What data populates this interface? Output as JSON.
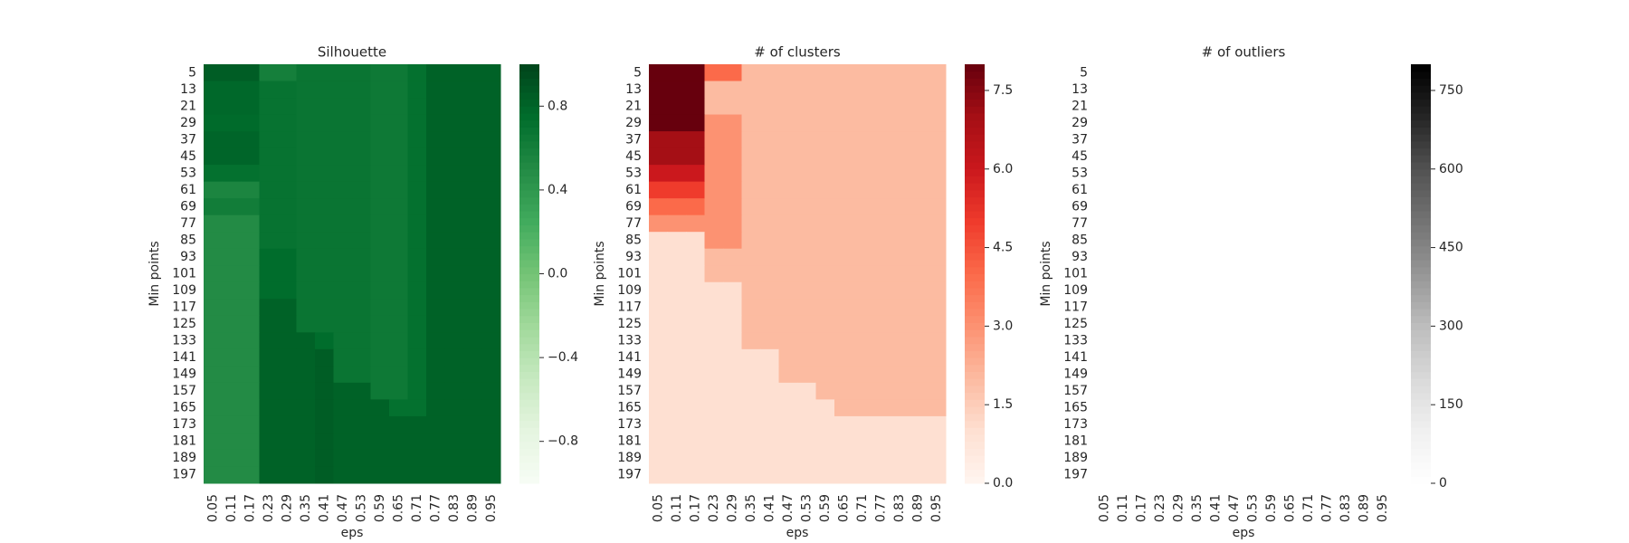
{
  "chart_data": [
    {
      "type": "heatmap",
      "title": "Silhouette",
      "xlabel": "eps",
      "ylabel": "Min points",
      "colormap": "Greens",
      "x": [
        0.05,
        0.11,
        0.17,
        0.23,
        0.29,
        0.35,
        0.41,
        0.47,
        0.53,
        0.59,
        0.65,
        0.71,
        0.77,
        0.83,
        0.89,
        0.95
      ],
      "y": [
        5,
        13,
        21,
        29,
        37,
        45,
        53,
        61,
        69,
        77,
        85,
        93,
        101,
        109,
        117,
        125,
        133,
        141,
        149,
        157,
        165,
        173,
        181,
        189,
        197
      ],
      "values": [
        [
          0.85,
          0.85,
          0.85,
          0.6,
          0.6,
          0.68,
          0.68,
          0.68,
          0.68,
          0.65,
          0.65,
          0.72,
          0.82,
          0.82,
          0.82,
          0.82
        ],
        [
          0.78,
          0.78,
          0.78,
          0.7,
          0.7,
          0.68,
          0.68,
          0.68,
          0.68,
          0.65,
          0.65,
          0.72,
          0.82,
          0.82,
          0.82,
          0.82
        ],
        [
          0.78,
          0.78,
          0.78,
          0.7,
          0.7,
          0.68,
          0.68,
          0.68,
          0.68,
          0.65,
          0.65,
          0.72,
          0.82,
          0.82,
          0.82,
          0.82
        ],
        [
          0.76,
          0.76,
          0.76,
          0.7,
          0.7,
          0.68,
          0.68,
          0.68,
          0.68,
          0.65,
          0.65,
          0.72,
          0.82,
          0.82,
          0.82,
          0.82
        ],
        [
          0.8,
          0.8,
          0.8,
          0.7,
          0.7,
          0.68,
          0.68,
          0.68,
          0.68,
          0.65,
          0.65,
          0.72,
          0.82,
          0.82,
          0.82,
          0.82
        ],
        [
          0.8,
          0.8,
          0.8,
          0.7,
          0.7,
          0.68,
          0.68,
          0.68,
          0.68,
          0.65,
          0.65,
          0.72,
          0.82,
          0.82,
          0.82,
          0.82
        ],
        [
          0.72,
          0.72,
          0.72,
          0.7,
          0.7,
          0.68,
          0.68,
          0.68,
          0.68,
          0.65,
          0.65,
          0.72,
          0.82,
          0.82,
          0.82,
          0.82
        ],
        [
          0.55,
          0.55,
          0.55,
          0.7,
          0.7,
          0.68,
          0.68,
          0.68,
          0.68,
          0.65,
          0.65,
          0.72,
          0.82,
          0.82,
          0.82,
          0.82
        ],
        [
          0.62,
          0.62,
          0.62,
          0.7,
          0.7,
          0.68,
          0.68,
          0.68,
          0.68,
          0.65,
          0.65,
          0.72,
          0.82,
          0.82,
          0.82,
          0.82
        ],
        [
          0.5,
          0.5,
          0.5,
          0.7,
          0.7,
          0.68,
          0.68,
          0.68,
          0.68,
          0.65,
          0.65,
          0.72,
          0.82,
          0.82,
          0.82,
          0.82
        ],
        [
          0.5,
          0.5,
          0.5,
          0.7,
          0.7,
          0.68,
          0.68,
          0.68,
          0.68,
          0.65,
          0.65,
          0.72,
          0.82,
          0.82,
          0.82,
          0.82
        ],
        [
          0.5,
          0.5,
          0.5,
          0.75,
          0.75,
          0.68,
          0.68,
          0.68,
          0.68,
          0.65,
          0.65,
          0.72,
          0.82,
          0.82,
          0.82,
          0.82
        ],
        [
          0.5,
          0.5,
          0.5,
          0.75,
          0.75,
          0.68,
          0.68,
          0.68,
          0.68,
          0.65,
          0.65,
          0.72,
          0.82,
          0.82,
          0.82,
          0.82
        ],
        [
          0.5,
          0.5,
          0.5,
          0.75,
          0.75,
          0.68,
          0.68,
          0.68,
          0.68,
          0.65,
          0.65,
          0.72,
          0.82,
          0.82,
          0.82,
          0.82
        ],
        [
          0.5,
          0.5,
          0.5,
          0.82,
          0.82,
          0.68,
          0.68,
          0.68,
          0.68,
          0.65,
          0.65,
          0.72,
          0.82,
          0.82,
          0.82,
          0.82
        ],
        [
          0.5,
          0.5,
          0.5,
          0.82,
          0.82,
          0.68,
          0.68,
          0.68,
          0.68,
          0.65,
          0.65,
          0.72,
          0.82,
          0.82,
          0.82,
          0.82
        ],
        [
          0.5,
          0.5,
          0.5,
          0.82,
          0.82,
          0.82,
          0.75,
          0.68,
          0.68,
          0.65,
          0.65,
          0.72,
          0.82,
          0.82,
          0.82,
          0.82
        ],
        [
          0.5,
          0.5,
          0.5,
          0.82,
          0.82,
          0.82,
          0.85,
          0.68,
          0.68,
          0.65,
          0.65,
          0.72,
          0.82,
          0.82,
          0.82,
          0.82
        ],
        [
          0.5,
          0.5,
          0.5,
          0.82,
          0.82,
          0.82,
          0.85,
          0.68,
          0.68,
          0.65,
          0.65,
          0.72,
          0.82,
          0.82,
          0.82,
          0.82
        ],
        [
          0.5,
          0.5,
          0.5,
          0.82,
          0.82,
          0.82,
          0.85,
          0.82,
          0.82,
          0.65,
          0.65,
          0.72,
          0.82,
          0.82,
          0.82,
          0.82
        ],
        [
          0.5,
          0.5,
          0.5,
          0.82,
          0.82,
          0.82,
          0.85,
          0.82,
          0.82,
          0.82,
          0.72,
          0.72,
          0.82,
          0.82,
          0.82,
          0.82
        ],
        [
          0.5,
          0.5,
          0.5,
          0.82,
          0.82,
          0.82,
          0.85,
          0.82,
          0.82,
          0.82,
          0.82,
          0.82,
          0.82,
          0.82,
          0.82,
          0.82
        ],
        [
          0.5,
          0.5,
          0.5,
          0.82,
          0.82,
          0.82,
          0.85,
          0.82,
          0.82,
          0.82,
          0.82,
          0.82,
          0.82,
          0.82,
          0.82,
          0.82
        ],
        [
          0.5,
          0.5,
          0.5,
          0.82,
          0.82,
          0.82,
          0.85,
          0.82,
          0.82,
          0.82,
          0.82,
          0.82,
          0.82,
          0.82,
          0.82,
          0.82
        ],
        [
          0.5,
          0.5,
          0.5,
          0.82,
          0.82,
          0.82,
          0.85,
          0.82,
          0.82,
          0.82,
          0.82,
          0.82,
          0.82,
          0.82,
          0.82,
          0.82
        ]
      ],
      "vlim": [
        -1,
        1
      ],
      "cticks": [
        {
          "value": -0.8,
          "label": "−0.8"
        },
        {
          "value": -0.4,
          "label": "−0.4"
        },
        {
          "value": 0,
          "label": "0.0"
        },
        0.4,
        0.8
      ]
    },
    {
      "type": "heatmap",
      "title": "# of clusters",
      "xlabel": "eps",
      "ylabel": "Min points",
      "colormap": "Reds",
      "x": [
        0.05,
        0.11,
        0.17,
        0.23,
        0.29,
        0.35,
        0.41,
        0.47,
        0.53,
        0.59,
        0.65,
        0.71,
        0.77,
        0.83,
        0.89,
        0.95
      ],
      "y": [
        5,
        13,
        21,
        29,
        37,
        45,
        53,
        61,
        69,
        77,
        85,
        93,
        101,
        109,
        117,
        125,
        133,
        141,
        149,
        157,
        165,
        173,
        181,
        189,
        197
      ],
      "values": [
        [
          8,
          8,
          8,
          4,
          4,
          2,
          2,
          2,
          2,
          2,
          2,
          2,
          2,
          2,
          2,
          2
        ],
        [
          8,
          8,
          8,
          2,
          2,
          2,
          2,
          2,
          2,
          2,
          2,
          2,
          2,
          2,
          2,
          2
        ],
        [
          8,
          8,
          8,
          2,
          2,
          2,
          2,
          2,
          2,
          2,
          2,
          2,
          2,
          2,
          2,
          2
        ],
        [
          8,
          8,
          8,
          3,
          3,
          2,
          2,
          2,
          2,
          2,
          2,
          2,
          2,
          2,
          2,
          2
        ],
        [
          7,
          7,
          7,
          3,
          3,
          2,
          2,
          2,
          2,
          2,
          2,
          2,
          2,
          2,
          2,
          2
        ],
        [
          7,
          7,
          7,
          3,
          3,
          2,
          2,
          2,
          2,
          2,
          2,
          2,
          2,
          2,
          2,
          2
        ],
        [
          6,
          6,
          6,
          3,
          3,
          2,
          2,
          2,
          2,
          2,
          2,
          2,
          2,
          2,
          2,
          2
        ],
        [
          5,
          5,
          5,
          3,
          3,
          2,
          2,
          2,
          2,
          2,
          2,
          2,
          2,
          2,
          2,
          2
        ],
        [
          4,
          4,
          4,
          3,
          3,
          2,
          2,
          2,
          2,
          2,
          2,
          2,
          2,
          2,
          2,
          2
        ],
        [
          3,
          3,
          3,
          3,
          3,
          2,
          2,
          2,
          2,
          2,
          2,
          2,
          2,
          2,
          2,
          2
        ],
        [
          1,
          1,
          1,
          3,
          3,
          2,
          2,
          2,
          2,
          2,
          2,
          2,
          2,
          2,
          2,
          2
        ],
        [
          1,
          1,
          1,
          2,
          2,
          2,
          2,
          2,
          2,
          2,
          2,
          2,
          2,
          2,
          2,
          2
        ],
        [
          1,
          1,
          1,
          2,
          2,
          2,
          2,
          2,
          2,
          2,
          2,
          2,
          2,
          2,
          2,
          2
        ],
        [
          1,
          1,
          1,
          1,
          1,
          2,
          2,
          2,
          2,
          2,
          2,
          2,
          2,
          2,
          2,
          2
        ],
        [
          1,
          1,
          1,
          1,
          1,
          2,
          2,
          2,
          2,
          2,
          2,
          2,
          2,
          2,
          2,
          2
        ],
        [
          1,
          1,
          1,
          1,
          1,
          2,
          2,
          2,
          2,
          2,
          2,
          2,
          2,
          2,
          2,
          2
        ],
        [
          1,
          1,
          1,
          1,
          1,
          2,
          2,
          2,
          2,
          2,
          2,
          2,
          2,
          2,
          2,
          2
        ],
        [
          1,
          1,
          1,
          1,
          1,
          1,
          1,
          2,
          2,
          2,
          2,
          2,
          2,
          2,
          2,
          2
        ],
        [
          1,
          1,
          1,
          1,
          1,
          1,
          1,
          2,
          2,
          2,
          2,
          2,
          2,
          2,
          2,
          2
        ],
        [
          1,
          1,
          1,
          1,
          1,
          1,
          1,
          1,
          1,
          2,
          2,
          2,
          2,
          2,
          2,
          2
        ],
        [
          1,
          1,
          1,
          1,
          1,
          1,
          1,
          1,
          1,
          1,
          2,
          2,
          2,
          2,
          2,
          2
        ],
        [
          1,
          1,
          1,
          1,
          1,
          1,
          1,
          1,
          1,
          1,
          1,
          1,
          1,
          1,
          1,
          1
        ],
        [
          1,
          1,
          1,
          1,
          1,
          1,
          1,
          1,
          1,
          1,
          1,
          1,
          1,
          1,
          1,
          1
        ],
        [
          1,
          1,
          1,
          1,
          1,
          1,
          1,
          1,
          1,
          1,
          1,
          1,
          1,
          1,
          1,
          1
        ],
        [
          1,
          1,
          1,
          1,
          1,
          1,
          1,
          1,
          1,
          1,
          1,
          1,
          1,
          1,
          1,
          1
        ]
      ],
      "vlim": [
        0,
        8
      ],
      "cticks": [
        {
          "value": 0,
          "label": "0.0"
        },
        1.5,
        {
          "value": 3,
          "label": "3.0"
        },
        4.5,
        {
          "value": 6,
          "label": "6.0"
        },
        7.5
      ]
    },
    {
      "type": "heatmap",
      "title": "# of outliers",
      "xlabel": "eps",
      "ylabel": "Min points",
      "colormap": "Greys",
      "x": [
        0.05,
        0.11,
        0.17,
        0.23,
        0.29,
        0.35,
        0.41,
        0.47,
        0.53,
        0.59,
        0.65,
        0.71,
        0.77,
        0.83,
        0.89,
        0.95
      ],
      "y": [
        5,
        13,
        21,
        29,
        37,
        45,
        53,
        61,
        69,
        77,
        85,
        93,
        101,
        109,
        117,
        125,
        133,
        141,
        149,
        157,
        165,
        173,
        181,
        189,
        197
      ],
      "vlim": [
        0,
        800
      ],
      "cticks": [
        0,
        150,
        300,
        450,
        600,
        750
      ]
    }
  ]
}
